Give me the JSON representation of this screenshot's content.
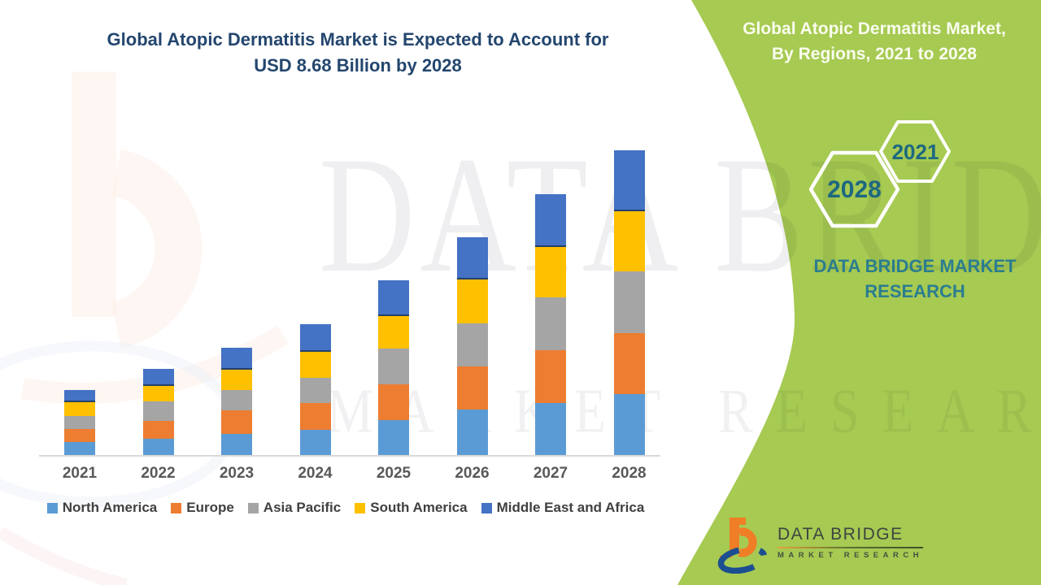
{
  "title": {
    "line1": "Global Atopic Dermatitis Market is Expected to Account for",
    "line2": "USD 8.68 Billion by 2028",
    "color": "#23466E"
  },
  "side_panel": {
    "bg_color": "#A6CA52",
    "title_line1": "Global Atopic Dermatitis Market,",
    "title_line2": "By Regions, 2021 to 2028",
    "title_color": "#FAFCEE",
    "hexagon_back_label": "2028",
    "hexagon_front_label": "2021",
    "hexagon_year_color": "#1D6880",
    "brand_line1": "DATA BRIDGE MARKET",
    "brand_line2": "RESEARCH",
    "brand_color": "#2B7D8F"
  },
  "watermark": {
    "line1": "DATA BRIDGE",
    "line2": "MARKET RESEARCH"
  },
  "logo": {
    "name": "DATA BRIDGE",
    "subtitle": "MARKET RESEARCH"
  },
  "chart_data": {
    "type": "bar",
    "stacked": true,
    "title": "Global Atopic Dermatitis Market is Expected to Account for USD 8.68 Billion by 2028",
    "unit": "USD Billion",
    "categories": [
      "2021",
      "2022",
      "2023",
      "2024",
      "2025",
      "2026",
      "2027",
      "2028"
    ],
    "series": [
      {
        "name": "North America",
        "color": "#5B9BD5",
        "values": [
          0.37,
          0.46,
          0.6,
          0.72,
          1.0,
          1.3,
          1.48,
          1.74
        ]
      },
      {
        "name": "Europe",
        "color": "#ED7D31",
        "values": [
          0.37,
          0.51,
          0.67,
          0.75,
          1.01,
          1.22,
          1.5,
          1.74
        ]
      },
      {
        "name": "Asia Pacific",
        "color": "#A5A5A5",
        "values": [
          0.37,
          0.56,
          0.59,
          0.73,
          1.02,
          1.24,
          1.5,
          1.76
        ]
      },
      {
        "name": "South America",
        "color": "#FFC000",
        "values": [
          0.39,
          0.44,
          0.57,
          0.74,
          0.93,
          1.23,
          1.45,
          1.71
        ]
      },
      {
        "name": "Middle East and Africa",
        "color": "#4472C4",
        "values": [
          0.35,
          0.49,
          0.63,
          0.79,
          1.01,
          1.22,
          1.49,
          1.73
        ]
      }
    ],
    "totals": [
      1.85,
      2.46,
      3.06,
      3.73,
      4.97,
      6.21,
      7.42,
      8.68
    ],
    "ylim": [
      0,
      8.68
    ],
    "gridlines": false,
    "y_axis_visible": false,
    "legend_position": "bottom",
    "x_label_color": "#595959",
    "axis_line_color": "#D9D9D9",
    "separator_under": "Middle East and Africa",
    "separator_color": "#24416B"
  }
}
